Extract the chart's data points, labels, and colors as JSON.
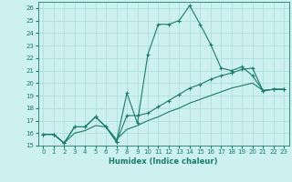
{
  "xlabel": "Humidex (Indice chaleur)",
  "background_color": "#cdf0f0",
  "grid_color": "#aadcdc",
  "line_color": "#1a7a6e",
  "xlim": [
    -0.5,
    23.5
  ],
  "ylim": [
    15,
    26.5
  ],
  "x_ticks": [
    0,
    1,
    2,
    3,
    4,
    5,
    6,
    7,
    8,
    9,
    10,
    11,
    12,
    13,
    14,
    15,
    16,
    17,
    18,
    19,
    20,
    21,
    22,
    23
  ],
  "y_ticks": [
    15,
    16,
    17,
    18,
    19,
    20,
    21,
    22,
    23,
    24,
    25,
    26
  ],
  "series1_x": [
    0,
    1,
    2,
    3,
    4,
    5,
    6,
    7,
    8,
    9,
    10,
    11,
    12,
    13,
    14,
    15,
    16,
    17,
    18,
    19,
    20,
    21,
    22,
    23
  ],
  "series1_y": [
    15.9,
    15.9,
    15.2,
    16.5,
    16.5,
    17.3,
    16.5,
    15.3,
    19.2,
    16.8,
    22.3,
    24.7,
    24.7,
    25.0,
    26.2,
    24.7,
    23.1,
    21.2,
    21.0,
    21.3,
    20.6,
    19.4,
    19.5,
    19.5
  ],
  "series2_x": [
    0,
    1,
    2,
    3,
    4,
    5,
    6,
    7,
    8,
    9,
    10,
    11,
    12,
    13,
    14,
    15,
    16,
    17,
    18,
    19,
    20,
    21,
    22,
    23
  ],
  "series2_y": [
    15.9,
    15.9,
    15.2,
    16.5,
    16.5,
    17.3,
    16.5,
    15.3,
    17.4,
    17.4,
    17.6,
    18.1,
    18.6,
    19.1,
    19.6,
    19.9,
    20.3,
    20.6,
    20.8,
    21.1,
    21.2,
    19.4,
    19.5,
    19.5
  ],
  "series3_x": [
    0,
    1,
    2,
    3,
    4,
    5,
    6,
    7,
    8,
    9,
    10,
    11,
    12,
    13,
    14,
    15,
    16,
    17,
    18,
    19,
    20,
    21,
    22,
    23
  ],
  "series3_y": [
    15.9,
    15.9,
    15.2,
    16.0,
    16.2,
    16.6,
    16.5,
    15.5,
    16.3,
    16.6,
    17.0,
    17.3,
    17.7,
    18.0,
    18.4,
    18.7,
    19.0,
    19.3,
    19.6,
    19.8,
    20.0,
    19.4,
    19.5,
    19.5
  ]
}
